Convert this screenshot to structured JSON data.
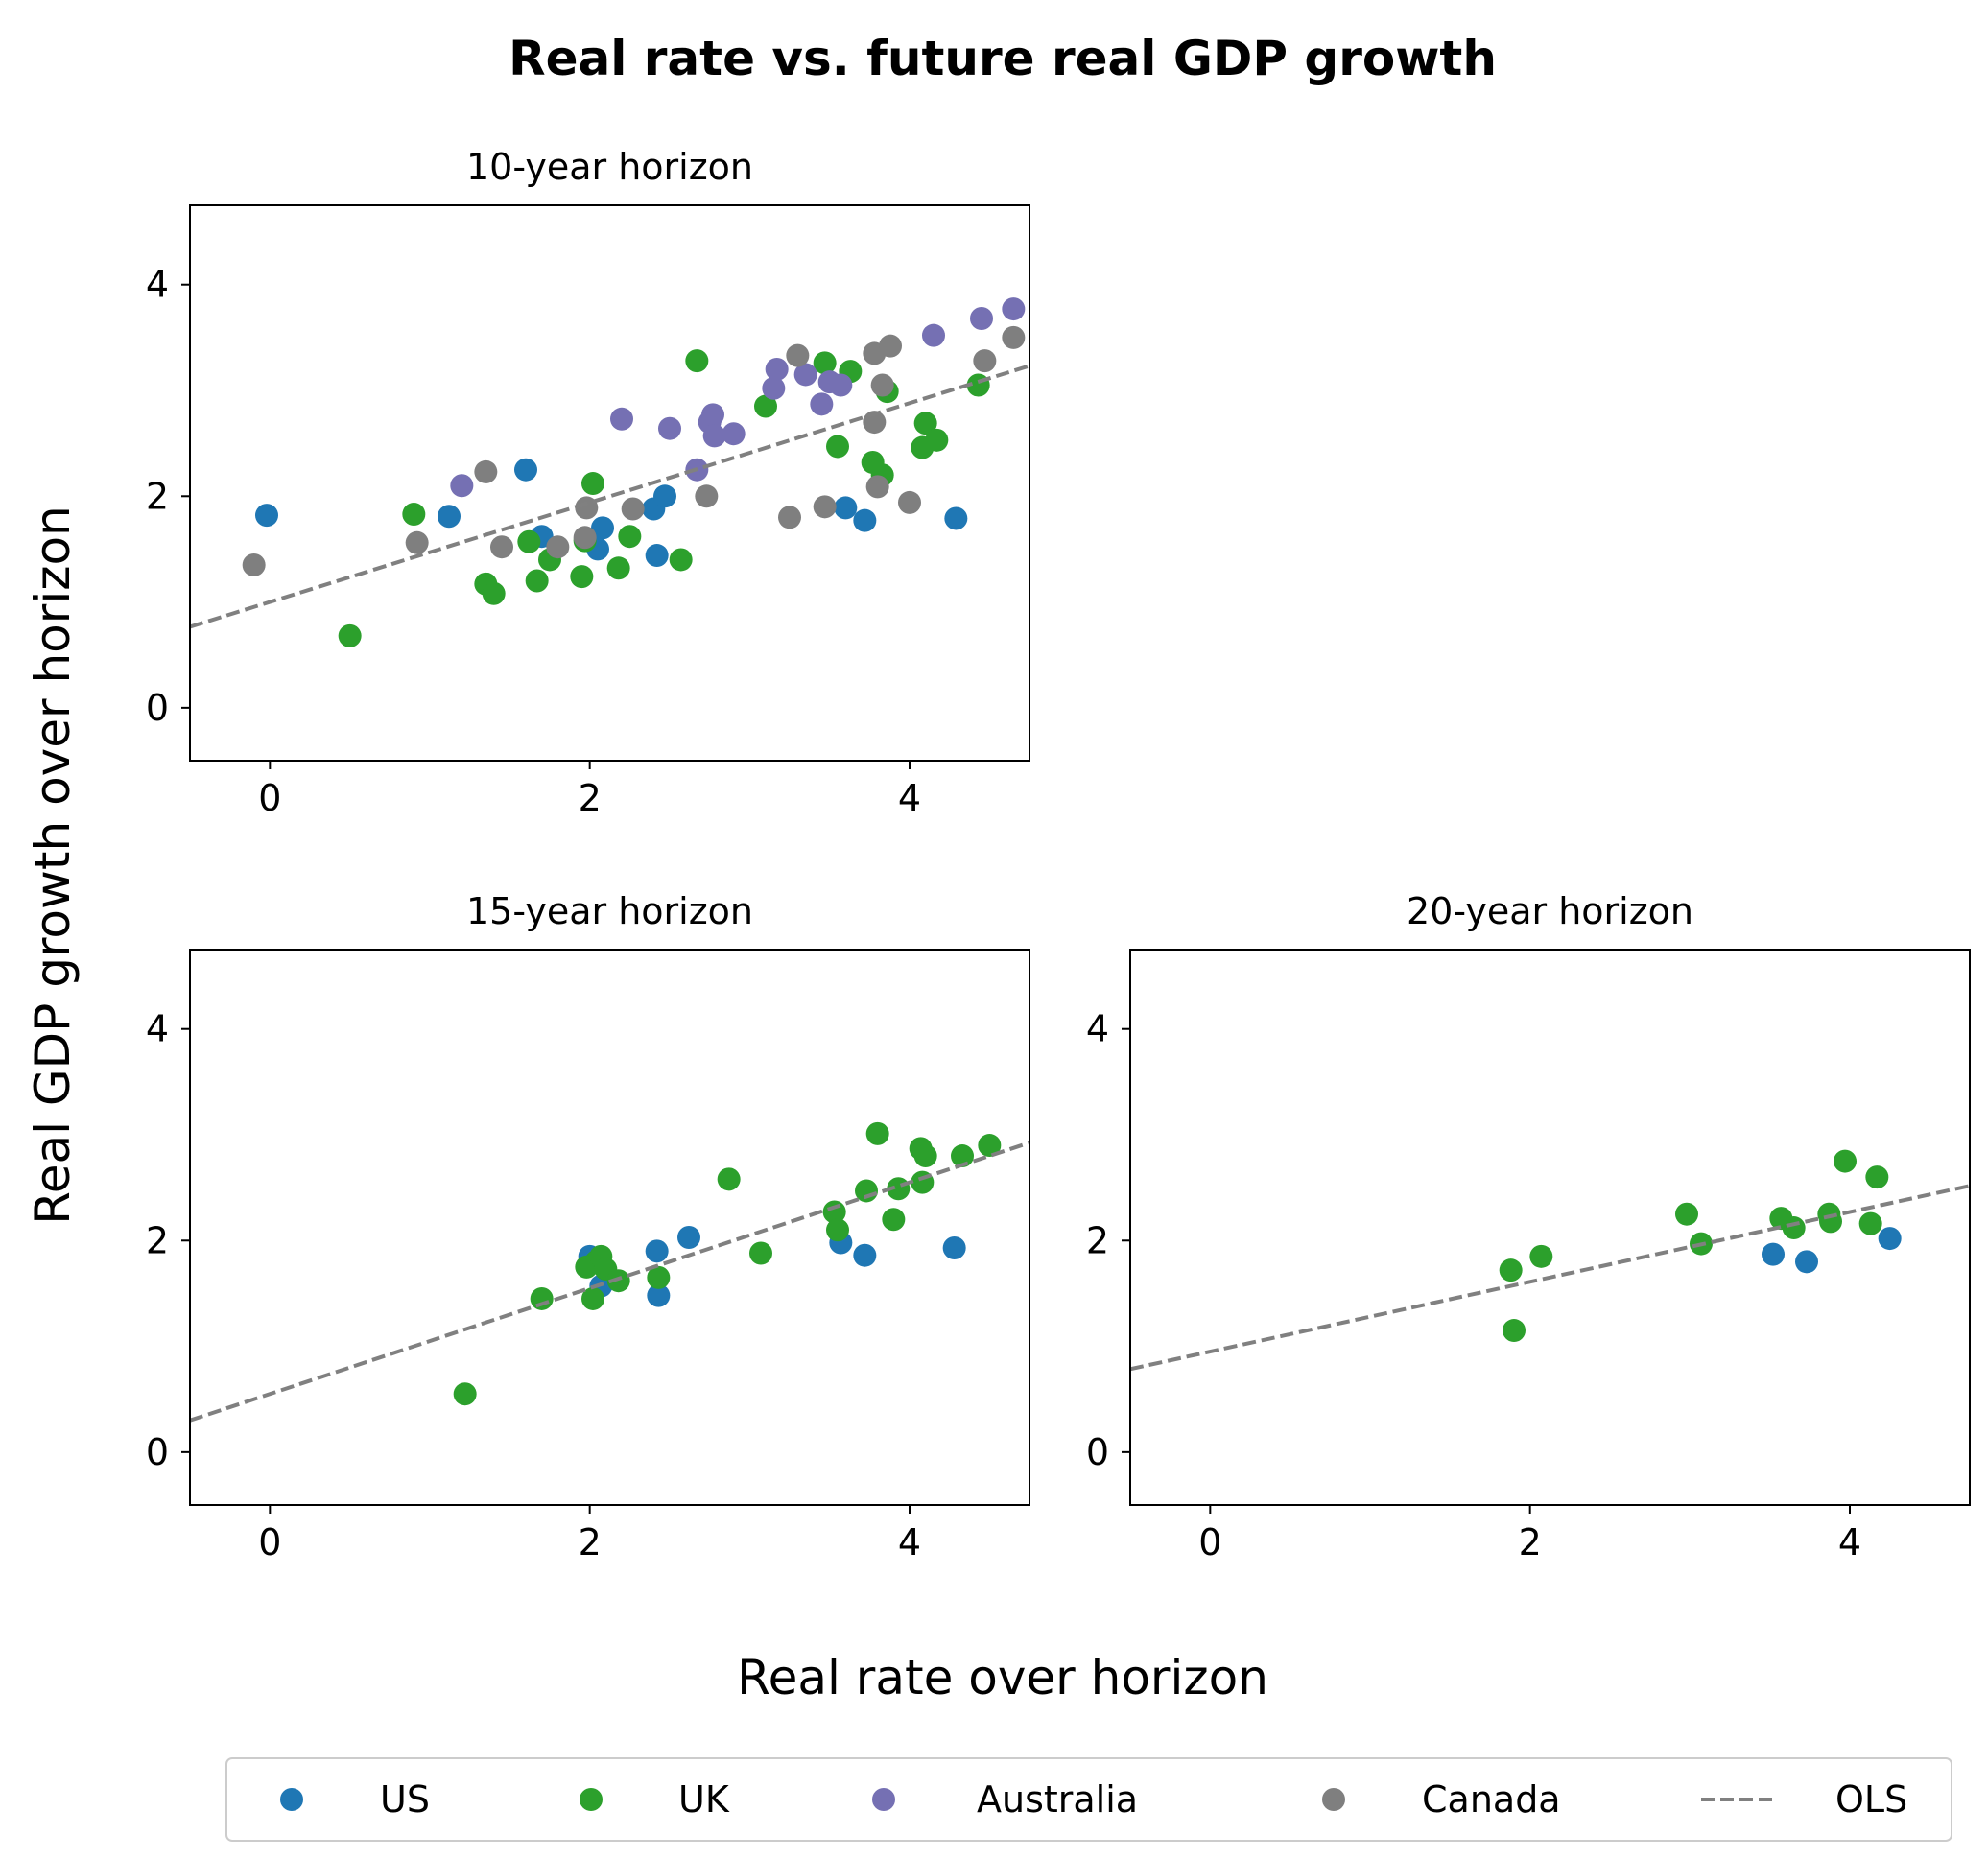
{
  "title": "Real rate vs. future real GDP growth",
  "xlabel": "Real rate over horizon",
  "ylabel": "Real GDP growth over horizon",
  "colors": {
    "US": "#1f77b4",
    "UK": "#2ca02c",
    "Australia": "#7570b3",
    "Canada": "#7f7f7f",
    "OLS": "#808080"
  },
  "legend": {
    "placement": "bottom-center",
    "entries": [
      {
        "label": "US",
        "key": "US",
        "kind": "marker"
      },
      {
        "label": "UK",
        "key": "UK",
        "kind": "marker"
      },
      {
        "label": "Australia",
        "key": "Australia",
        "kind": "marker"
      },
      {
        "label": "Canada",
        "key": "Canada",
        "kind": "marker"
      },
      {
        "label": "OLS",
        "key": "OLS",
        "kind": "line"
      }
    ]
  },
  "chart_data": [
    {
      "type": "scatter",
      "title": "10-year horizon",
      "xlim": [
        -0.5,
        4.75
      ],
      "ylim": [
        -0.5,
        4.75
      ],
      "xticks": [
        0,
        2,
        4
      ],
      "yticks": [
        0,
        2,
        4
      ],
      "ols": {
        "intercept": 1.0,
        "slope": 0.47
      },
      "series": [
        {
          "name": "US",
          "points": [
            [
              -0.02,
              1.82
            ],
            [
              1.12,
              1.81
            ],
            [
              1.6,
              2.25
            ],
            [
              1.7,
              1.62
            ],
            [
              2.08,
              1.7
            ],
            [
              2.05,
              1.5
            ],
            [
              2.4,
              1.88
            ],
            [
              2.47,
              2.0
            ],
            [
              2.42,
              1.44
            ],
            [
              3.6,
              1.89
            ],
            [
              3.72,
              1.77
            ],
            [
              4.29,
              1.79
            ]
          ]
        },
        {
          "name": "UK",
          "points": [
            [
              0.5,
              0.68
            ],
            [
              0.9,
              1.83
            ],
            [
              1.35,
              1.17
            ],
            [
              1.4,
              1.08
            ],
            [
              1.62,
              1.57
            ],
            [
              1.67,
              1.2
            ],
            [
              1.75,
              1.4
            ],
            [
              1.95,
              1.24
            ],
            [
              1.97,
              1.58
            ],
            [
              2.02,
              2.12
            ],
            [
              2.18,
              1.32
            ],
            [
              2.25,
              1.62
            ],
            [
              2.57,
              1.4
            ],
            [
              2.67,
              3.28
            ],
            [
              3.1,
              2.85
            ],
            [
              3.47,
              3.26
            ],
            [
              3.55,
              2.47
            ],
            [
              3.63,
              3.18
            ],
            [
              3.77,
              2.32
            ],
            [
              3.83,
              2.2
            ],
            [
              3.86,
              2.99
            ],
            [
              4.08,
              2.46
            ],
            [
              4.1,
              2.69
            ],
            [
              4.17,
              2.53
            ],
            [
              4.43,
              3.05
            ]
          ]
        },
        {
          "name": "Australia",
          "points": [
            [
              1.2,
              2.1
            ],
            [
              2.2,
              2.73
            ],
            [
              2.5,
              2.64
            ],
            [
              2.67,
              2.25
            ],
            [
              2.75,
              2.7
            ],
            [
              2.77,
              2.77
            ],
            [
              2.78,
              2.57
            ],
            [
              2.9,
              2.59
            ],
            [
              3.15,
              3.02
            ],
            [
              3.17,
              3.2
            ],
            [
              3.35,
              3.15
            ],
            [
              3.45,
              2.87
            ],
            [
              3.5,
              3.08
            ],
            [
              3.57,
              3.05
            ],
            [
              4.15,
              3.52
            ],
            [
              4.45,
              3.68
            ],
            [
              4.65,
              3.77
            ]
          ]
        },
        {
          "name": "Canada",
          "points": [
            [
              -0.1,
              1.35
            ],
            [
              0.92,
              1.56
            ],
            [
              1.35,
              2.23
            ],
            [
              1.45,
              1.52
            ],
            [
              1.8,
              1.52
            ],
            [
              1.97,
              1.61
            ],
            [
              1.98,
              1.89
            ],
            [
              2.27,
              1.88
            ],
            [
              2.73,
              2.0
            ],
            [
              3.25,
              1.8
            ],
            [
              3.3,
              3.33
            ],
            [
              3.47,
              1.9
            ],
            [
              3.78,
              2.7
            ],
            [
              3.8,
              2.09
            ],
            [
              3.78,
              3.35
            ],
            [
              3.83,
              3.05
            ],
            [
              3.88,
              3.42
            ],
            [
              4.0,
              1.94
            ],
            [
              4.47,
              3.28
            ],
            [
              4.65,
              3.5
            ]
          ]
        }
      ]
    },
    {
      "type": "scatter",
      "title": "15-year horizon",
      "xlim": [
        -0.5,
        4.75
      ],
      "ylim": [
        -0.5,
        4.75
      ],
      "xticks": [
        0,
        2,
        4
      ],
      "yticks": [
        0,
        2,
        4
      ],
      "ols": {
        "intercept": 0.55,
        "slope": 0.5
      },
      "series": [
        {
          "name": "US",
          "points": [
            [
              2.0,
              1.85
            ],
            [
              2.07,
              1.57
            ],
            [
              2.42,
              1.9
            ],
            [
              2.43,
              1.48
            ],
            [
              2.62,
              2.03
            ],
            [
              3.57,
              1.98
            ],
            [
              3.72,
              1.86
            ],
            [
              4.28,
              1.93
            ]
          ]
        },
        {
          "name": "UK",
          "points": [
            [
              1.22,
              0.55
            ],
            [
              1.7,
              1.45
            ],
            [
              1.98,
              1.75
            ],
            [
              2.02,
              1.45
            ],
            [
              2.04,
              1.8
            ],
            [
              2.07,
              1.85
            ],
            [
              2.1,
              1.73
            ],
            [
              2.18,
              1.62
            ],
            [
              2.43,
              1.65
            ],
            [
              2.87,
              2.58
            ],
            [
              3.07,
              1.88
            ],
            [
              3.53,
              2.27
            ],
            [
              3.55,
              2.1
            ],
            [
              3.73,
              2.47
            ],
            [
              3.8,
              3.01
            ],
            [
              3.9,
              2.2
            ],
            [
              3.93,
              2.49
            ],
            [
              4.07,
              2.87
            ],
            [
              4.08,
              2.55
            ],
            [
              4.1,
              2.8
            ],
            [
              4.33,
              2.8
            ],
            [
              4.5,
              2.9
            ]
          ]
        }
      ]
    },
    {
      "type": "scatter",
      "title": "20-year horizon",
      "xlim": [
        -0.5,
        4.75
      ],
      "ylim": [
        -0.5,
        4.75
      ],
      "xticks": [
        0,
        2,
        4
      ],
      "yticks": [
        0,
        2,
        4
      ],
      "ols": {
        "intercept": 0.95,
        "slope": 0.33
      },
      "series": [
        {
          "name": "US",
          "points": [
            [
              3.52,
              1.87
            ],
            [
              3.73,
              1.8
            ],
            [
              4.25,
              2.02
            ]
          ]
        },
        {
          "name": "UK",
          "points": [
            [
              1.88,
              1.72
            ],
            [
              1.9,
              1.15
            ],
            [
              2.07,
              1.85
            ],
            [
              2.98,
              2.25
            ],
            [
              3.07,
              1.97
            ],
            [
              3.57,
              2.21
            ],
            [
              3.65,
              2.12
            ],
            [
              3.87,
              2.25
            ],
            [
              3.88,
              2.18
            ],
            [
              3.97,
              2.75
            ],
            [
              4.13,
              2.16
            ],
            [
              4.17,
              2.6
            ]
          ]
        }
      ]
    }
  ]
}
